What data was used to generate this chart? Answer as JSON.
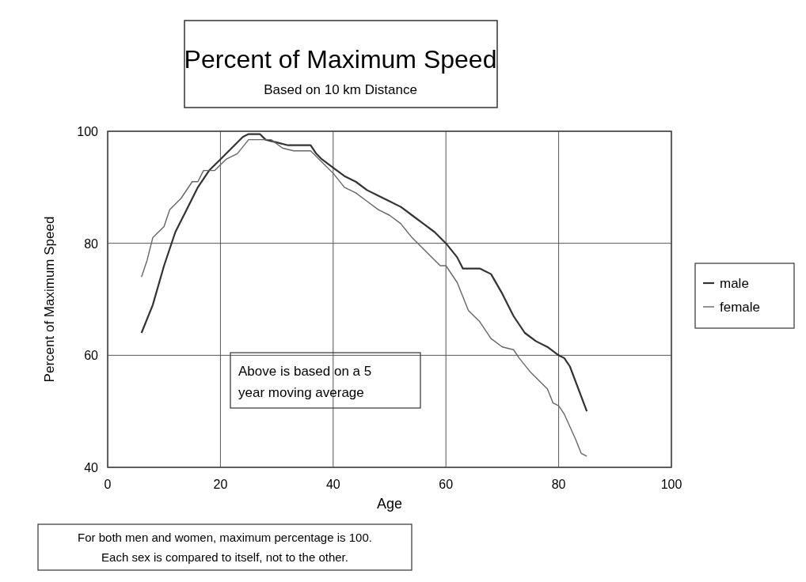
{
  "chart_data": {
    "type": "line",
    "title": "Percent of Maximum Speed",
    "subtitle": "Based on 10 km Distance",
    "xlabel": "Age",
    "ylabel": "Percent of Maximum Speed",
    "xlim": [
      0,
      100
    ],
    "xticks": [
      0,
      20,
      40,
      60,
      80,
      100
    ],
    "ylim": [
      40,
      100
    ],
    "yticks": [
      40,
      60,
      80,
      100
    ],
    "grid": true,
    "legend": "right",
    "line_style": "solid",
    "annotations": [
      "Above is based on a 5 year moving average",
      "For both men and women, maximum percentage is 100. Each sex is compared to itself, not to the other."
    ],
    "series": [
      {
        "name": "male",
        "color": "#333333",
        "x": [
          6,
          8,
          10,
          12,
          14,
          16,
          18,
          20,
          22,
          24,
          25,
          27,
          28,
          30,
          32,
          34,
          36,
          37,
          38,
          40,
          42,
          44,
          46,
          48,
          50,
          52,
          54,
          56,
          58,
          60,
          62,
          63,
          66,
          68,
          70,
          72,
          74,
          76,
          78,
          80,
          81,
          82,
          85
        ],
        "values": [
          64,
          69,
          76,
          82,
          86,
          90,
          93,
          95,
          97,
          99,
          99.5,
          99.5,
          98.5,
          98,
          97.5,
          97.5,
          97.5,
          96,
          95,
          93.5,
          92,
          91,
          89.5,
          88.5,
          87.5,
          86.5,
          85,
          83.5,
          82,
          80,
          77.5,
          75.5,
          75.5,
          74.5,
          71,
          67,
          64,
          62.5,
          61.5,
          60,
          59.5,
          58,
          50
        ]
      },
      {
        "name": "female",
        "color": "#666666",
        "x": [
          6,
          7,
          8,
          10,
          11,
          13,
          15,
          16,
          17,
          19,
          21,
          23,
          25,
          27,
          29,
          31,
          33,
          36,
          38,
          40,
          42,
          44,
          46,
          48,
          50,
          52,
          54,
          56,
          58,
          59,
          60,
          62,
          64,
          66,
          68,
          70,
          72,
          73,
          75,
          77,
          78,
          79,
          80,
          81,
          83,
          84,
          85
        ],
        "values": [
          74,
          77,
          81,
          83,
          86,
          88,
          91,
          91,
          93,
          93,
          95,
          96,
          98.5,
          98.5,
          98.5,
          97,
          96.5,
          96.5,
          94.5,
          92.5,
          90,
          89,
          87.5,
          86,
          85,
          83.5,
          81,
          79,
          77,
          76,
          76,
          73,
          68,
          66,
          63,
          61.5,
          61,
          59.5,
          57,
          55,
          54,
          51.5,
          51,
          49.5,
          45,
          42.5,
          42
        ]
      }
    ]
  }
}
